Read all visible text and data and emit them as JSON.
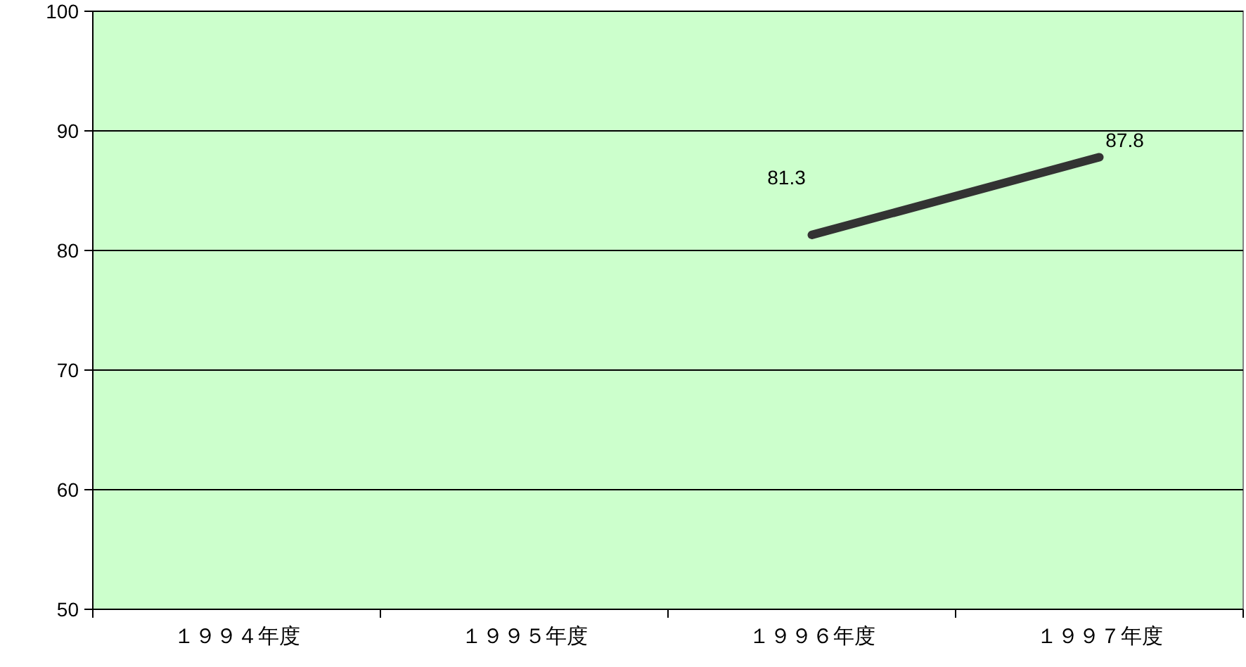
{
  "chart_data": {
    "type": "line",
    "categories": [
      "１９９４年度",
      "１９９５年度",
      "１９９６年度",
      "１９９７年度"
    ],
    "series": [
      {
        "color": "#333333",
        "values": [
          null,
          null,
          81.3,
          87.8
        ]
      }
    ],
    "ylim": [
      50,
      100
    ],
    "yticks": [
      50,
      60,
      70,
      80,
      90,
      100
    ],
    "grid": "y",
    "data_labels": true,
    "marker": "none",
    "line_style": "solid"
  }
}
